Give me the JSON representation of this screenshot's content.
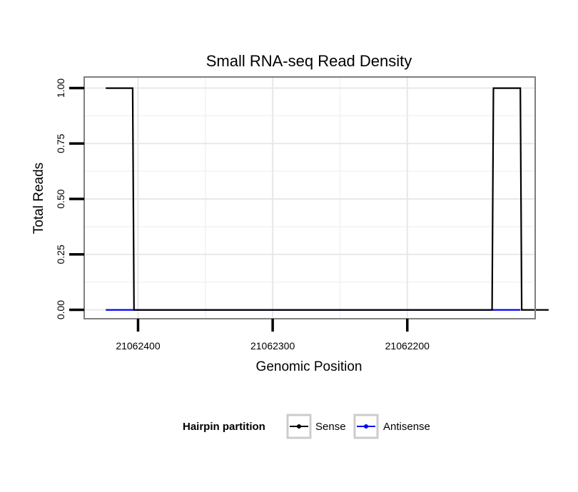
{
  "chart_data": {
    "type": "line",
    "title": "Small RNA-seq Read Density",
    "xlabel": "Genomic Position",
    "ylabel": "Total Reads",
    "x_reversed": true,
    "xlim": [
      21062440,
      21062105
    ],
    "ylim": [
      -0.04,
      1.05
    ],
    "x_ticks": [
      21062400,
      21062300,
      21062200
    ],
    "x_tick_labels": [
      "21062400",
      "21062300",
      "21062200"
    ],
    "y_ticks": [
      0,
      0.25,
      0.5,
      0.75,
      1.0
    ],
    "y_tick_labels": [
      "0.00",
      "0.25",
      "0.50",
      "0.75",
      "1.00"
    ],
    "grid": true,
    "legend": {
      "title": "Hairpin partition",
      "position": "bottom"
    },
    "series": [
      {
        "name": "Sense",
        "color": "#000000",
        "points": [
          [
            21062424,
            1
          ],
          [
            21062404,
            1
          ],
          [
            21062403,
            0
          ],
          [
            21062137,
            0
          ],
          [
            21062136,
            1
          ],
          [
            21062116,
            1
          ],
          [
            21062115,
            0
          ],
          [
            21062095,
            0
          ]
        ]
      },
      {
        "name": "Antisense",
        "color": "#0000ff",
        "points": [
          [
            21062424,
            0
          ],
          [
            21062403,
            0
          ],
          [
            21062137,
            0
          ],
          [
            21062116,
            0
          ]
        ]
      }
    ]
  }
}
